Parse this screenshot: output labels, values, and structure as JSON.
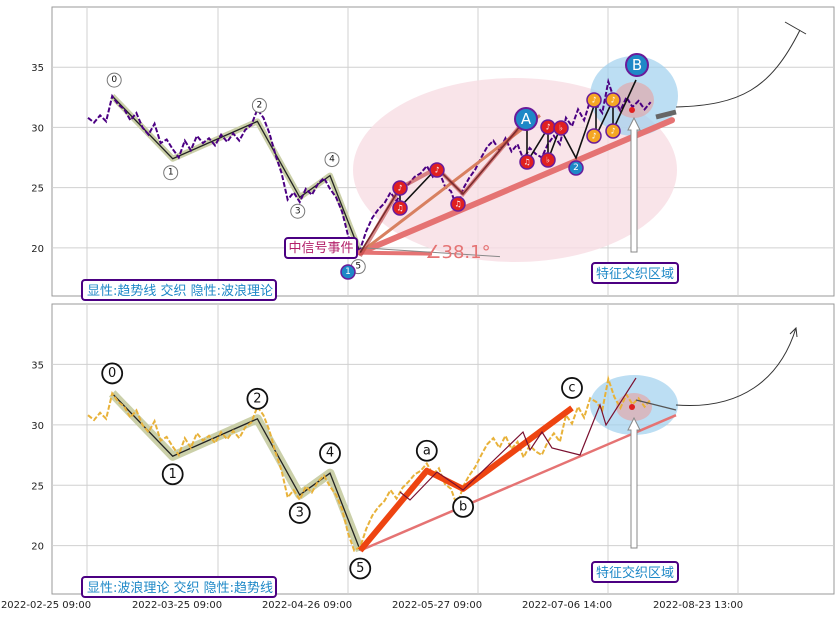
{
  "chart_data": [
    {
      "type": "line",
      "panel": "top",
      "ylim": [
        16,
        40
      ],
      "yticks": [
        20,
        25,
        30,
        35
      ],
      "caption": "显性:趋势线 交织 隐性:波浪理论",
      "event_label": "中信号事件",
      "zone_label": "特征交织区域",
      "angle_label": "∠38.1°",
      "series": [
        {
          "role": "price",
          "color": "#4b0082",
          "values": [
            30.8,
            30.4,
            31.0,
            30.5,
            32.6,
            31.9,
            31.5,
            30.6,
            31.2,
            30.0,
            29.4,
            30.3,
            28.7,
            29.0,
            28.2,
            27.5,
            28.9,
            28.1,
            29.3,
            28.7,
            29.1,
            28.5,
            29.4,
            28.8,
            29.5,
            28.9,
            29.8,
            30.2,
            31.5,
            30.8,
            29.5,
            27.7,
            26.2,
            24.0,
            24.6,
            23.8,
            24.9,
            24.4,
            25.3,
            25.8,
            24.9,
            24.2,
            23.0,
            21.0,
            19.6,
            19.9,
            21.4,
            22.5,
            23.2,
            23.7,
            24.6,
            23.9,
            24.8,
            25.3,
            25.9,
            26.2,
            26.8,
            25.9,
            26.4,
            25.1,
            24.7,
            23.3,
            24.9,
            25.8,
            26.5,
            27.5,
            28.4,
            28.9,
            28.1,
            29.1,
            28.0,
            28.6,
            27.3,
            28.3,
            27.8,
            27.5,
            28.6,
            29.3,
            28.6,
            30.8,
            30.1,
            31.5,
            30.6,
            32.2,
            31.9,
            31.2,
            33.8,
            32.3,
            31.4,
            32.5,
            31.7,
            32.2,
            31.5,
            32.1
          ]
        }
      ],
      "wave_nodes": [
        {
          "label": "0",
          "x": 4,
          "y": 32.6
        },
        {
          "label": "1",
          "x": 14,
          "y": 27.4
        },
        {
          "label": "2",
          "x": 28,
          "y": 30.5
        },
        {
          "label": "3",
          "x": 35,
          "y": 24.2
        },
        {
          "label": "4",
          "x": 40,
          "y": 26.0
        },
        {
          "label": "5",
          "x": 45,
          "y": 19.6
        }
      ],
      "marker_labels": [
        "1",
        "2",
        "A",
        "B"
      ],
      "note_glyphs": [
        "♪",
        "♫",
        "♭"
      ]
    },
    {
      "type": "line",
      "panel": "bottom",
      "ylim": [
        16,
        40
      ],
      "yticks": [
        20,
        25,
        30,
        35
      ],
      "caption": "显性:波浪理论 交织 隐性:趋势线",
      "zone_label": "特征交织区域",
      "series": [
        {
          "role": "price",
          "color": "#e8b23a",
          "values": [
            30.8,
            30.4,
            31.0,
            30.5,
            32.6,
            31.9,
            31.5,
            30.6,
            31.2,
            30.0,
            29.4,
            30.3,
            28.7,
            29.0,
            28.2,
            27.5,
            28.9,
            28.1,
            29.3,
            28.7,
            29.1,
            28.5,
            29.4,
            28.8,
            29.5,
            28.9,
            29.8,
            30.2,
            31.5,
            30.8,
            29.5,
            27.7,
            26.2,
            24.0,
            24.6,
            23.8,
            24.9,
            24.4,
            25.3,
            25.8,
            24.9,
            24.2,
            23.0,
            21.0,
            19.6,
            19.9,
            21.4,
            22.5,
            23.2,
            23.7,
            24.6,
            23.9,
            24.8,
            25.3,
            25.9,
            26.2,
            26.8,
            25.9,
            26.4,
            25.1,
            24.7,
            23.3,
            24.9,
            25.8,
            26.5,
            27.5,
            28.4,
            28.9,
            28.1,
            29.1,
            28.0,
            28.6,
            27.3,
            28.3,
            27.8,
            27.5,
            28.6,
            29.3,
            28.6,
            30.8,
            30.1,
            31.5,
            30.6,
            32.2,
            31.9,
            31.2,
            33.8,
            32.3,
            31.4,
            32.5,
            31.7,
            32.2,
            31.5,
            32.1
          ]
        }
      ],
      "wave_nodes": [
        {
          "label": "0",
          "x": 4,
          "y": 32.6
        },
        {
          "label": "1",
          "x": 14,
          "y": 27.4
        },
        {
          "label": "2",
          "x": 28,
          "y": 30.5
        },
        {
          "label": "3",
          "x": 35,
          "y": 24.2
        },
        {
          "label": "4",
          "x": 40,
          "y": 26.0
        },
        {
          "label": "5",
          "x": 45,
          "y": 19.6
        },
        {
          "label": "a",
          "x": 56,
          "y": 26.2
        },
        {
          "label": "b",
          "x": 62,
          "y": 24.7
        },
        {
          "label": "c",
          "x": 80,
          "y": 31.4
        }
      ]
    }
  ],
  "x_ticks": [
    "2022-02-25 09:00",
    "2022-03-25 09:00",
    "2022-04-26 09:00",
    "2022-05-27 09:00",
    "2022-07-06 14:00",
    "2022-08-23 13:00"
  ],
  "colors": {
    "grid": "#d0d0d0",
    "trend": "#e57373",
    "wave_fill": "#c5cba0",
    "impulse": "#ee4411",
    "zone": "#9fd0ee",
    "ellipse": "#f8dde4",
    "box_border": "#4b0082",
    "caption_text": "#1e88c7",
    "event_text": "#b3206a"
  }
}
